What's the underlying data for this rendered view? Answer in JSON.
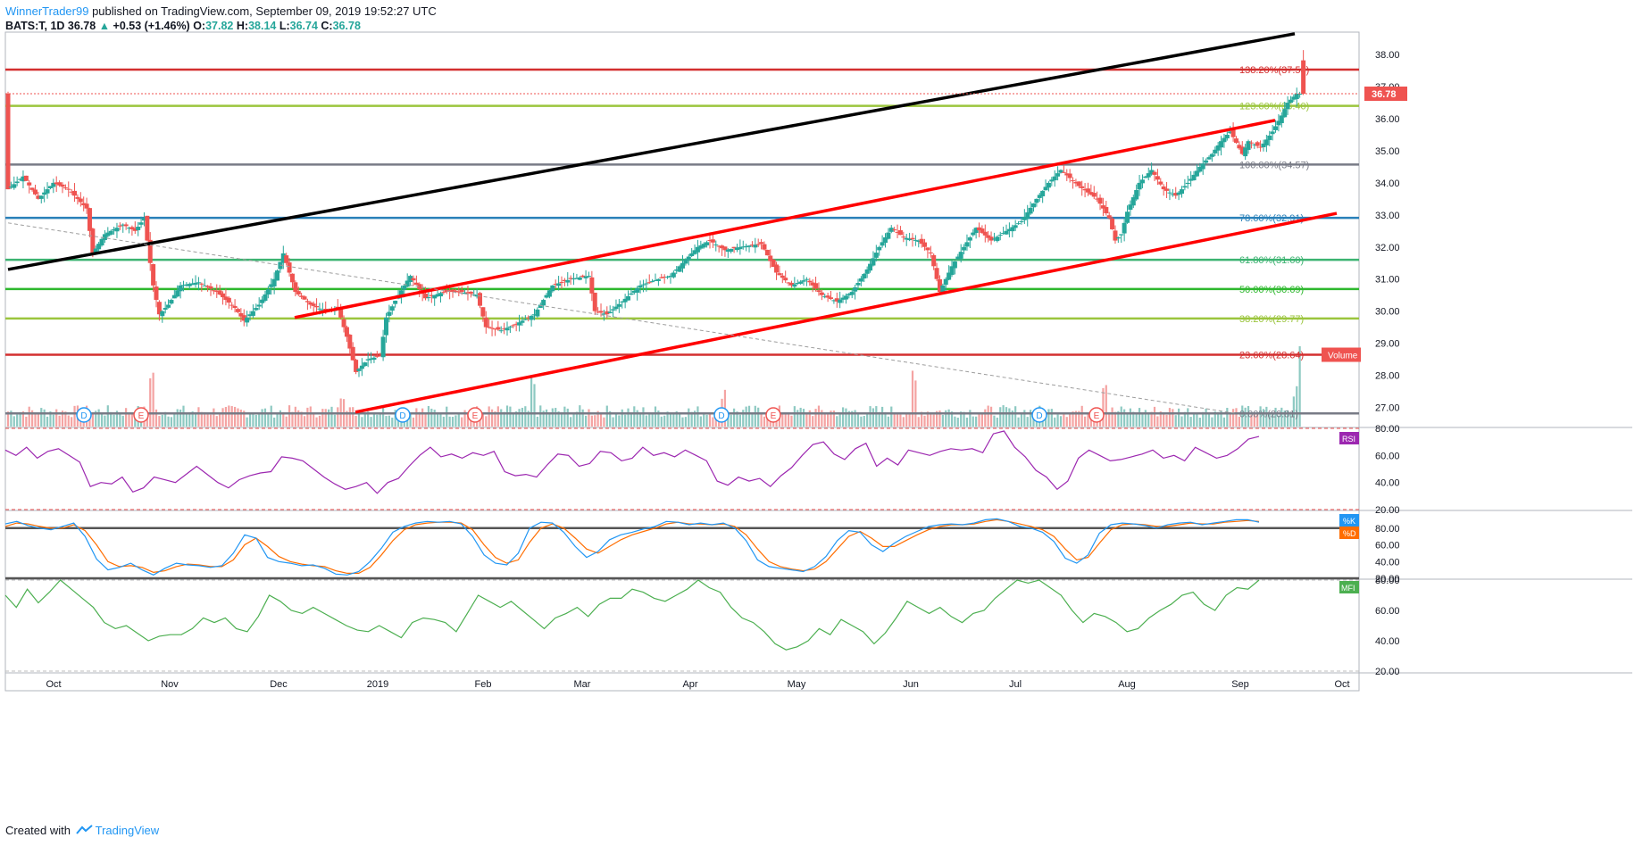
{
  "header": {
    "author": "WinnerTrader99",
    "published": "published on TradingView.com, September 09, 2019 19:52:27 UTC"
  },
  "ohlc": {
    "symbol": "BATS:T, 1D",
    "last": "36.78",
    "change": "+0.53 (+1.46%)",
    "open_label": "O:",
    "open": "37.82",
    "high_label": "H:",
    "high": "38.14",
    "low_label": "L:",
    "low": "36.74",
    "close_label": "C:",
    "close": "36.78"
  },
  "footer": {
    "created_with": "Created with",
    "brand": "TradingView"
  },
  "colors": {
    "up": "#26a69a",
    "down": "#ef5350",
    "vol_up": "#8dc9c2",
    "vol_down": "#f4a3a2",
    "rsi": "#9c27b0",
    "stoch_k": "#2196f3",
    "stoch_d": "#ff6d00",
    "mfi": "#4caf50"
  },
  "chart_data": [
    {
      "type": "candlestick",
      "name": "BATS:T, 1D",
      "ylim": [
        26.4,
        38.7
      ],
      "yticks": [
        "38.00",
        "37.00",
        "36.00",
        "35.00",
        "34.00",
        "33.00",
        "32.00",
        "31.00",
        "30.00",
        "29.00",
        "28.00",
        "27.00"
      ],
      "xticks": [
        "Oct",
        "Nov",
        "Dec",
        "2019",
        "Feb",
        "Mar",
        "Apr",
        "May",
        "Jun",
        "Jul",
        "Aug",
        "Sep",
        "Oct"
      ],
      "price_label": "36.78",
      "volume_label": "Volume",
      "fib_levels": [
        {
          "label": "138.20%(37.53)",
          "value": 37.53,
          "color": "#d32f2f"
        },
        {
          "label": "123.60%(36.40)",
          "value": 36.4,
          "color": "#9bc53d"
        },
        {
          "label": "100.00%(34.57)",
          "value": 34.57,
          "color": "#787b86"
        },
        {
          "label": "78.60%(32.91)",
          "value": 32.91,
          "color": "#2980b9"
        },
        {
          "label": "61.80%(31.60)",
          "value": 31.6,
          "color": "#3cb371"
        },
        {
          "label": "50.00%(30.69)",
          "value": 30.69,
          "color": "#2eb82e"
        },
        {
          "label": "38.20%(29.77)",
          "value": 29.77,
          "color": "#9bc53d"
        },
        {
          "label": "23.60%(28.64)",
          "value": 28.64,
          "color": "#d32f2f"
        },
        {
          "label": "0.00%(26.81)",
          "value": 26.81,
          "color": "#787b86"
        }
      ],
      "event_markers": [
        {
          "label": "D",
          "color": "#2196f3"
        },
        {
          "label": "E",
          "color": "#ef5350"
        },
        {
          "label": "D",
          "color": "#2196f3"
        },
        {
          "label": "E",
          "color": "#ef5350"
        },
        {
          "label": "D",
          "color": "#2196f3"
        },
        {
          "label": "E",
          "color": "#ef5350"
        },
        {
          "label": "D",
          "color": "#2196f3"
        },
        {
          "label": "E",
          "color": "#ef5350"
        }
      ],
      "close_path": [
        [
          0,
          33.8
        ],
        [
          5,
          34.2
        ],
        [
          10,
          33.5
        ],
        [
          15,
          34.0
        ],
        [
          20,
          33.8
        ],
        [
          26,
          33.2
        ],
        [
          28,
          31.8
        ],
        [
          32,
          32.4
        ],
        [
          38,
          32.7
        ],
        [
          42,
          32.5
        ],
        [
          45,
          32.9
        ],
        [
          46,
          32.2
        ],
        [
          48,
          30.8
        ],
        [
          50,
          29.9
        ],
        [
          53,
          30.2
        ],
        [
          57,
          30.8
        ],
        [
          63,
          30.9
        ],
        [
          69,
          30.6
        ],
        [
          75,
          30.1
        ],
        [
          78,
          29.7
        ],
        [
          83,
          30.2
        ],
        [
          88,
          31.0
        ],
        [
          91,
          31.8
        ],
        [
          95,
          30.6
        ],
        [
          100,
          30.2
        ],
        [
          105,
          30.0
        ],
        [
          109,
          30.1
        ],
        [
          112,
          29.2
        ],
        [
          115,
          28.1
        ],
        [
          119,
          28.5
        ],
        [
          123,
          28.6
        ],
        [
          125,
          29.8
        ],
        [
          129,
          30.5
        ],
        [
          133,
          31.1
        ],
        [
          138,
          30.4
        ],
        [
          144,
          30.6
        ],
        [
          150,
          30.6
        ],
        [
          155,
          30.5
        ],
        [
          158,
          29.5
        ],
        [
          163,
          29.4
        ],
        [
          168,
          29.6
        ],
        [
          174,
          29.9
        ],
        [
          180,
          30.8
        ],
        [
          186,
          31.0
        ],
        [
          192,
          31.1
        ],
        [
          194,
          30.0
        ],
        [
          198,
          29.9
        ],
        [
          203,
          30.3
        ],
        [
          209,
          30.8
        ],
        [
          215,
          31.0
        ],
        [
          219,
          31.1
        ],
        [
          223,
          31.5
        ],
        [
          228,
          32.0
        ],
        [
          232,
          32.2
        ],
        [
          237,
          31.9
        ],
        [
          242,
          32.0
        ],
        [
          249,
          32.1
        ],
        [
          254,
          31.2
        ],
        [
          259,
          30.8
        ],
        [
          264,
          31.0
        ],
        [
          269,
          30.5
        ],
        [
          274,
          30.3
        ],
        [
          279,
          30.6
        ],
        [
          284,
          31.3
        ],
        [
          288,
          32.0
        ],
        [
          292,
          32.6
        ],
        [
          296,
          32.3
        ],
        [
          301,
          32.2
        ],
        [
          305,
          31.8
        ],
        [
          308,
          30.6
        ],
        [
          312,
          31.4
        ],
        [
          316,
          32.0
        ],
        [
          320,
          32.6
        ],
        [
          325,
          32.2
        ],
        [
          330,
          32.5
        ],
        [
          335,
          32.8
        ],
        [
          340,
          33.5
        ],
        [
          344,
          34.0
        ],
        [
          348,
          34.4
        ],
        [
          354,
          33.9
        ],
        [
          360,
          33.5
        ],
        [
          364,
          32.9
        ],
        [
          366,
          32.2
        ],
        [
          368,
          32.4
        ],
        [
          370,
          33.1
        ],
        [
          374,
          34.0
        ],
        [
          378,
          34.4
        ],
        [
          382,
          33.8
        ],
        [
          386,
          33.6
        ],
        [
          390,
          34.0
        ],
        [
          394,
          34.5
        ],
        [
          398,
          34.9
        ],
        [
          401,
          35.3
        ],
        [
          404,
          35.6
        ],
        [
          408,
          34.9
        ],
        [
          410,
          35.3
        ],
        [
          414,
          35.1
        ],
        [
          418,
          35.6
        ],
        [
          421,
          36.1
        ],
        [
          423,
          36.5
        ],
        [
          426,
          36.78
        ]
      ],
      "total_bars": 428
    },
    {
      "type": "line",
      "name": "RSI",
      "ylim": [
        20,
        80
      ],
      "yticks": [
        "80.00",
        "60.00",
        "40.00",
        "20.00"
      ],
      "series": [
        {
          "name": "RSI",
          "values": [
            64,
            60,
            66,
            58,
            63,
            65,
            60,
            55,
            37,
            40,
            39,
            44,
            33,
            36,
            44,
            42,
            40,
            46,
            52,
            46,
            40,
            36,
            42,
            45,
            47,
            48,
            59,
            58,
            56,
            50,
            44,
            39,
            35,
            37,
            40,
            32,
            40,
            43,
            52,
            60,
            66,
            59,
            61,
            58,
            62,
            60,
            63,
            48,
            45,
            46,
            44,
            53,
            61,
            60,
            52,
            54,
            63,
            62,
            56,
            58,
            66,
            60,
            62,
            59,
            64,
            60,
            56,
            41,
            38,
            44,
            41,
            43,
            37,
            45,
            51,
            60,
            68,
            70,
            61,
            57,
            65,
            69,
            52,
            58,
            53,
            64,
            62,
            60,
            63,
            65,
            64,
            65,
            62,
            76,
            78,
            66,
            59,
            49,
            44,
            35,
            41,
            58,
            64,
            60,
            56,
            57,
            59,
            61,
            64,
            58,
            60,
            56,
            66,
            62,
            58,
            60,
            65,
            72,
            74
          ]
        }
      ]
    },
    {
      "type": "line",
      "name": "Stoch",
      "ylim": [
        20,
        100
      ],
      "yticks": [
        "80.00",
        "60.00",
        "40.00",
        "20.00"
      ],
      "series": [
        {
          "name": "%K",
          "values": [
            85,
            88,
            83,
            80,
            78,
            82,
            86,
            70,
            43,
            30,
            33,
            38,
            30,
            24,
            32,
            38,
            36,
            35,
            33,
            35,
            50,
            72,
            68,
            45,
            40,
            38,
            35,
            36,
            32,
            25,
            24,
            28,
            40,
            56,
            75,
            82,
            86,
            88,
            87,
            88,
            85,
            70,
            48,
            38,
            36,
            50,
            80,
            87,
            86,
            75,
            58,
            45,
            52,
            66,
            72,
            75,
            79,
            82,
            88,
            87,
            84,
            86,
            84,
            86,
            80,
            65,
            42,
            34,
            32,
            30,
            28,
            34,
            46,
            65,
            77,
            75,
            60,
            52,
            62,
            70,
            76,
            82,
            84,
            85,
            84,
            86,
            90,
            91,
            88,
            82,
            80,
            75,
            64,
            44,
            38,
            48,
            74,
            84,
            86,
            85,
            83,
            80,
            84,
            86,
            87,
            84,
            86,
            88,
            90,
            90,
            87
          ]
        },
        {
          "name": "%D",
          "values": [
            82,
            86,
            85,
            82,
            80,
            80,
            84,
            77,
            60,
            40,
            34,
            35,
            33,
            27,
            29,
            34,
            37,
            36,
            34,
            34,
            42,
            60,
            68,
            58,
            46,
            40,
            37,
            35,
            34,
            29,
            26,
            26,
            33,
            48,
            65,
            78,
            84,
            86,
            87,
            87,
            86,
            78,
            60,
            45,
            38,
            42,
            63,
            80,
            85,
            80,
            68,
            55,
            50,
            58,
            66,
            72,
            76,
            80,
            85,
            87,
            85,
            85,
            84,
            85,
            82,
            72,
            55,
            40,
            34,
            31,
            29,
            31,
            40,
            55,
            70,
            76,
            68,
            58,
            58,
            65,
            72,
            78,
            82,
            84,
            84,
            85,
            88,
            90,
            88,
            85,
            82,
            78,
            70,
            55,
            42,
            45,
            62,
            78,
            84,
            85,
            84,
            82,
            82,
            84,
            86,
            85,
            85,
            87,
            88,
            89,
            88
          ]
        }
      ],
      "levels": [
        80,
        20
      ]
    },
    {
      "type": "line",
      "name": "MFI",
      "ylim": [
        20,
        80
      ],
      "yticks": [
        "80.00",
        "60.00",
        "40.00",
        "20.00"
      ],
      "series": [
        {
          "name": "MFI",
          "values": [
            70,
            62,
            74,
            65,
            72,
            80,
            74,
            68,
            62,
            52,
            48,
            50,
            45,
            40,
            43,
            44,
            44,
            48,
            55,
            52,
            55,
            48,
            46,
            56,
            70,
            66,
            60,
            58,
            62,
            58,
            54,
            50,
            47,
            46,
            50,
            46,
            42,
            52,
            55,
            54,
            52,
            46,
            58,
            70,
            66,
            62,
            66,
            60,
            54,
            48,
            55,
            58,
            62,
            56,
            64,
            68,
            68,
            74,
            72,
            68,
            66,
            70,
            74,
            80,
            75,
            72,
            62,
            55,
            52,
            46,
            38,
            34,
            36,
            40,
            48,
            44,
            54,
            50,
            46,
            38,
            45,
            55,
            66,
            62,
            58,
            62,
            56,
            52,
            58,
            60,
            68,
            74,
            80,
            78,
            80,
            75,
            70,
            60,
            52,
            58,
            56,
            52,
            46,
            48,
            55,
            60,
            64,
            70,
            72,
            64,
            60,
            70,
            75,
            74,
            80
          ]
        }
      ]
    }
  ]
}
